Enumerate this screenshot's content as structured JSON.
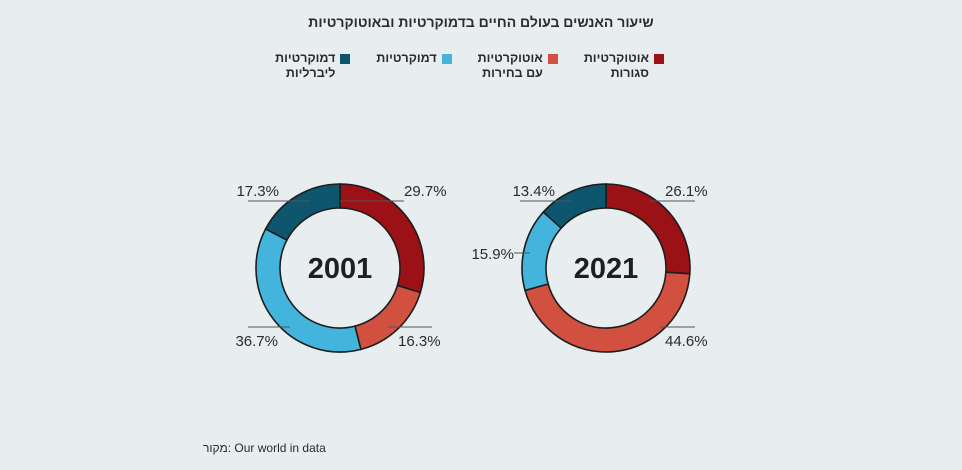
{
  "title": "שיעור האנשים בעולם החיים בדמוקרטיות ובאוטוקרטיות",
  "legend": [
    {
      "label": "אוטוקרטיות\nסגורות",
      "color": "#9b1115"
    },
    {
      "label": "אוטוקרטיות\nעם בחירות",
      "color": "#d1503f"
    },
    {
      "label": "דמוקרטיות",
      "color": "#43b5dd"
    },
    {
      "label": "דמוקרטיות\nליברליות",
      "color": "#0d566d"
    }
  ],
  "source": "מקור: Our world in data",
  "chart_data": [
    {
      "type": "pie",
      "title": "2001",
      "categories": [
        "אוטוקרטיות סגורות",
        "אוטוקרטיות עם בחירות",
        "דמוקרטיות",
        "דמוקרטיות ליברליות"
      ],
      "values": [
        29.7,
        16.3,
        36.7,
        17.3
      ],
      "labels": [
        "29.7%",
        "16.3%",
        "36.7%",
        "17.3%"
      ],
      "colors": [
        "#9b1115",
        "#d1503f",
        "#43b5dd",
        "#0d566d"
      ]
    },
    {
      "type": "pie",
      "title": "2021",
      "categories": [
        "אוטוקרטיות סגורות",
        "אוטוקרטיות עם בחירות",
        "דמוקרטיות",
        "דמוקרטיות ליברליות"
      ],
      "values": [
        26.1,
        44.6,
        15.9,
        13.4
      ],
      "labels": [
        "26.1%",
        "44.6%",
        "15.9%",
        "13.4%"
      ],
      "colors": [
        "#9b1115",
        "#d1503f",
        "#43b5dd",
        "#0d566d"
      ]
    }
  ]
}
